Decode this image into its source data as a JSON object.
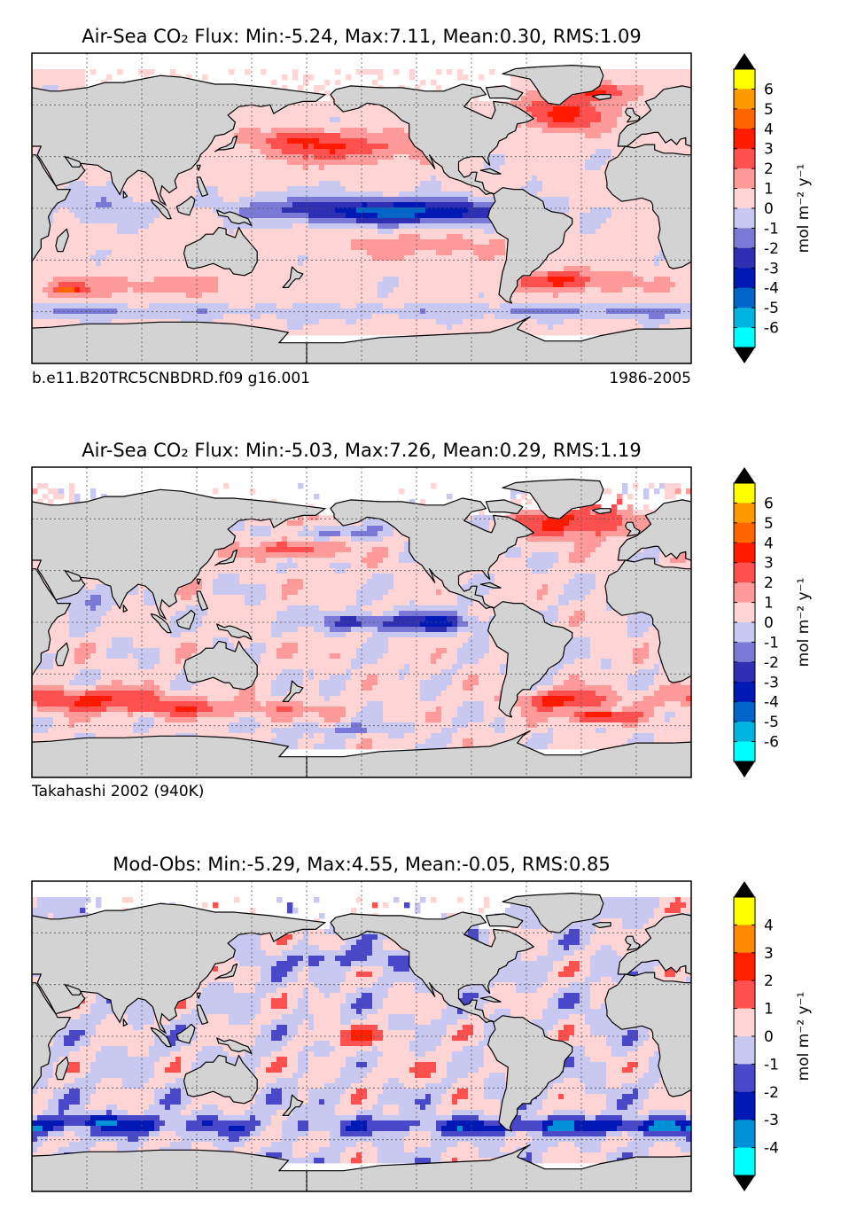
{
  "figure": {
    "colors": {
      "land": "#d3d3d3",
      "ocean_missing": "#ffffff",
      "coast": "#000000",
      "grid": "#555555"
    },
    "cbar_ylabel": "mol m⁻² y⁻¹"
  },
  "chart_data": [
    {
      "type": "heatmap",
      "panel": "model",
      "title": "Air-Sea CO₂ Flux: Min:-5.24, Max:7.11, Mean:0.30, RMS:1.09",
      "caption_left": "b.e11.B20TRC5CNBDRD.f09 g16.001",
      "caption_right": "1986-2005",
      "stats": {
        "min": -5.24,
        "max": 7.11,
        "mean": 0.3,
        "rms": 1.09
      },
      "units": "mol m-2 y-1",
      "period": "1986-2005",
      "colorbar": {
        "ticks": [
          "6",
          "5",
          "4",
          "3",
          "2",
          "1",
          "0",
          "-1",
          "-2",
          "-3",
          "-4",
          "-5",
          "-6"
        ],
        "extend": "both",
        "colors": [
          "#00ffff",
          "#00b4e0",
          "#0064c8",
          "#0018b4",
          "#2f2fb4",
          "#7a7ad6",
          "#c8c8f0",
          "#ffd4d4",
          "#ff9a9a",
          "#ff5050",
          "#ff1a00",
          "#ff6600",
          "#ff9900",
          "#ffff00"
        ],
        "vmin": -7,
        "vmax": 7
      }
    },
    {
      "type": "heatmap",
      "panel": "observed",
      "title": "Air-Sea CO₂ Flux: Min:-5.03, Max:7.26, Mean:0.29, RMS:1.19",
      "caption_left": "Takahashi 2002 (940K)",
      "caption_right": "",
      "stats": {
        "min": -5.03,
        "max": 7.26,
        "mean": 0.29,
        "rms": 1.19
      },
      "units": "mol m-2 y-1",
      "colorbar": {
        "ticks": [
          "6",
          "5",
          "4",
          "3",
          "2",
          "1",
          "0",
          "-1",
          "-2",
          "-3",
          "-4",
          "-5",
          "-6"
        ],
        "extend": "both",
        "colors": [
          "#00ffff",
          "#00b4e0",
          "#0064c8",
          "#0018b4",
          "#2f2fb4",
          "#7a7ad6",
          "#c8c8f0",
          "#ffd4d4",
          "#ff9a9a",
          "#ff5050",
          "#ff1a00",
          "#ff6600",
          "#ff9900",
          "#ffff00"
        ],
        "vmin": -7,
        "vmax": 7
      }
    },
    {
      "type": "heatmap",
      "panel": "difference",
      "title": "Mod-Obs: Min:-5.29, Max:4.55, Mean:-0.05, RMS:0.85",
      "caption_left": "",
      "caption_right": "",
      "stats": {
        "min": -5.29,
        "max": 4.55,
        "mean": -0.05,
        "rms": 0.85
      },
      "units": "mol m-2 y-1",
      "colorbar": {
        "ticks": [
          "4",
          "3",
          "2",
          "1",
          "0",
          "-1",
          "-2",
          "-3",
          "-4"
        ],
        "extend": "both",
        "colors": [
          "#00ffff",
          "#0090d8",
          "#0018b4",
          "#4848c8",
          "#c8c8f0",
          "#ffd4d4",
          "#ff5050",
          "#ff2000",
          "#ff8800",
          "#ffff00"
        ],
        "vmin": -5,
        "vmax": 5
      }
    }
  ]
}
